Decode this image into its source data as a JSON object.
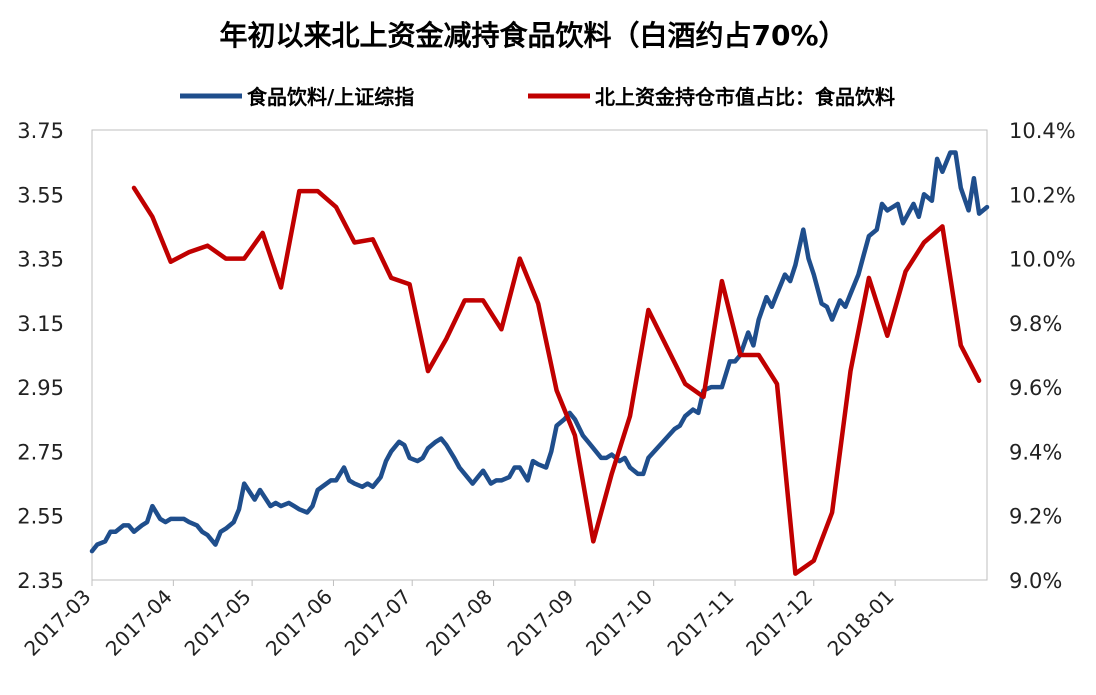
{
  "chart_data": {
    "type": "line",
    "title": "年初以来北上资金减持食品饮料（白酒约占70%）",
    "x_ticks": [
      "2017-03",
      "2017-04",
      "2017-05",
      "2017-06",
      "2017-07",
      "2017-08",
      "2017-09",
      "2017-10",
      "2017-11",
      "2017-12",
      "2018-01"
    ],
    "y_left": {
      "ticks": [
        "2.35",
        "2.55",
        "2.75",
        "2.95",
        "3.15",
        "3.35",
        "3.55",
        "3.75"
      ],
      "ylim": [
        2.35,
        3.75
      ]
    },
    "y_right": {
      "ticks": [
        "9.0%",
        "9.2%",
        "9.4%",
        "9.6%",
        "9.8%",
        "10.0%",
        "10.2%",
        "10.4%"
      ],
      "ylim": [
        9.0,
        10.4
      ],
      "unit": "%"
    },
    "legend_position": "top",
    "grid": false,
    "series": [
      {
        "name": "食品饮料/上证综指",
        "axis": "left",
        "color": "#1F4E8C",
        "points": [
          [
            "2017-03-01",
            2.44
          ],
          [
            "2017-03-03",
            2.46
          ],
          [
            "2017-03-06",
            2.47
          ],
          [
            "2017-03-08",
            2.5
          ],
          [
            "2017-03-10",
            2.5
          ],
          [
            "2017-03-13",
            2.52
          ],
          [
            "2017-03-15",
            2.52
          ],
          [
            "2017-03-17",
            2.5
          ],
          [
            "2017-03-20",
            2.52
          ],
          [
            "2017-03-22",
            2.53
          ],
          [
            "2017-03-24",
            2.58
          ],
          [
            "2017-03-27",
            2.54
          ],
          [
            "2017-03-29",
            2.53
          ],
          [
            "2017-03-31",
            2.54
          ],
          [
            "2017-04-05",
            2.54
          ],
          [
            "2017-04-07",
            2.53
          ],
          [
            "2017-04-10",
            2.52
          ],
          [
            "2017-04-12",
            2.5
          ],
          [
            "2017-04-14",
            2.49
          ],
          [
            "2017-04-17",
            2.46
          ],
          [
            "2017-04-19",
            2.5
          ],
          [
            "2017-04-21",
            2.51
          ],
          [
            "2017-04-24",
            2.53
          ],
          [
            "2017-04-26",
            2.57
          ],
          [
            "2017-04-28",
            2.65
          ],
          [
            "2017-05-02",
            2.6
          ],
          [
            "2017-05-04",
            2.63
          ],
          [
            "2017-05-08",
            2.58
          ],
          [
            "2017-05-10",
            2.59
          ],
          [
            "2017-05-12",
            2.58
          ],
          [
            "2017-05-15",
            2.59
          ],
          [
            "2017-05-17",
            2.58
          ],
          [
            "2017-05-19",
            2.57
          ],
          [
            "2017-05-22",
            2.56
          ],
          [
            "2017-05-24",
            2.58
          ],
          [
            "2017-05-26",
            2.63
          ],
          [
            "2017-05-31",
            2.66
          ],
          [
            "2017-06-02",
            2.66
          ],
          [
            "2017-06-05",
            2.7
          ],
          [
            "2017-06-07",
            2.66
          ],
          [
            "2017-06-09",
            2.65
          ],
          [
            "2017-06-12",
            2.64
          ],
          [
            "2017-06-14",
            2.65
          ],
          [
            "2017-06-16",
            2.64
          ],
          [
            "2017-06-19",
            2.67
          ],
          [
            "2017-06-21",
            2.72
          ],
          [
            "2017-06-23",
            2.75
          ],
          [
            "2017-06-26",
            2.78
          ],
          [
            "2017-06-28",
            2.77
          ],
          [
            "2017-06-30",
            2.73
          ],
          [
            "2017-07-03",
            2.72
          ],
          [
            "2017-07-05",
            2.73
          ],
          [
            "2017-07-07",
            2.76
          ],
          [
            "2017-07-10",
            2.78
          ],
          [
            "2017-07-12",
            2.79
          ],
          [
            "2017-07-14",
            2.77
          ],
          [
            "2017-07-17",
            2.73
          ],
          [
            "2017-07-19",
            2.7
          ],
          [
            "2017-07-21",
            2.68
          ],
          [
            "2017-07-24",
            2.65
          ],
          [
            "2017-07-26",
            2.67
          ],
          [
            "2017-07-28",
            2.69
          ],
          [
            "2017-07-31",
            2.65
          ],
          [
            "2017-08-02",
            2.66
          ],
          [
            "2017-08-04",
            2.66
          ],
          [
            "2017-08-07",
            2.67
          ],
          [
            "2017-08-09",
            2.7
          ],
          [
            "2017-08-11",
            2.7
          ],
          [
            "2017-08-14",
            2.66
          ],
          [
            "2017-08-16",
            2.72
          ],
          [
            "2017-08-18",
            2.71
          ],
          [
            "2017-08-21",
            2.7
          ],
          [
            "2017-08-23",
            2.75
          ],
          [
            "2017-08-25",
            2.83
          ],
          [
            "2017-08-28",
            2.85
          ],
          [
            "2017-08-30",
            2.87
          ],
          [
            "2017-09-01",
            2.85
          ],
          [
            "2017-09-04",
            2.8
          ],
          [
            "2017-09-06",
            2.78
          ],
          [
            "2017-09-08",
            2.76
          ],
          [
            "2017-09-11",
            2.73
          ],
          [
            "2017-09-13",
            2.73
          ],
          [
            "2017-09-15",
            2.74
          ],
          [
            "2017-09-18",
            2.72
          ],
          [
            "2017-09-20",
            2.73
          ],
          [
            "2017-09-22",
            2.7
          ],
          [
            "2017-09-25",
            2.68
          ],
          [
            "2017-09-27",
            2.68
          ],
          [
            "2017-09-29",
            2.73
          ],
          [
            "2017-10-09",
            2.82
          ],
          [
            "2017-10-11",
            2.83
          ],
          [
            "2017-10-13",
            2.86
          ],
          [
            "2017-10-16",
            2.88
          ],
          [
            "2017-10-18",
            2.87
          ],
          [
            "2017-10-20",
            2.94
          ],
          [
            "2017-10-23",
            2.95
          ],
          [
            "2017-10-25",
            2.95
          ],
          [
            "2017-10-27",
            2.95
          ],
          [
            "2017-10-30",
            3.03
          ],
          [
            "2017-11-01",
            3.03
          ],
          [
            "2017-11-03",
            3.05
          ],
          [
            "2017-11-06",
            3.12
          ],
          [
            "2017-11-08",
            3.08
          ],
          [
            "2017-11-10",
            3.16
          ],
          [
            "2017-11-13",
            3.23
          ],
          [
            "2017-11-15",
            3.2
          ],
          [
            "2017-11-17",
            3.24
          ],
          [
            "2017-11-20",
            3.3
          ],
          [
            "2017-11-22",
            3.28
          ],
          [
            "2017-11-24",
            3.33
          ],
          [
            "2017-11-27",
            3.44
          ],
          [
            "2017-11-29",
            3.35
          ],
          [
            "2017-12-01",
            3.3
          ],
          [
            "2017-12-04",
            3.21
          ],
          [
            "2017-12-06",
            3.2
          ],
          [
            "2017-12-08",
            3.16
          ],
          [
            "2017-12-11",
            3.22
          ],
          [
            "2017-12-13",
            3.2
          ],
          [
            "2017-12-15",
            3.24
          ],
          [
            "2017-12-18",
            3.3
          ],
          [
            "2017-12-20",
            3.36
          ],
          [
            "2017-12-22",
            3.42
          ],
          [
            "2017-12-25",
            3.44
          ],
          [
            "2017-12-27",
            3.52
          ],
          [
            "2017-12-29",
            3.5
          ],
          [
            "2018-01-02",
            3.52
          ],
          [
            "2018-01-04",
            3.46
          ],
          [
            "2018-01-08",
            3.52
          ],
          [
            "2018-01-10",
            3.48
          ],
          [
            "2018-01-12",
            3.55
          ],
          [
            "2018-01-15",
            3.53
          ],
          [
            "2018-01-17",
            3.66
          ],
          [
            "2018-01-19",
            3.62
          ],
          [
            "2018-01-22",
            3.68
          ],
          [
            "2018-01-24",
            3.68
          ],
          [
            "2018-01-26",
            3.57
          ],
          [
            "2018-01-29",
            3.5
          ],
          [
            "2018-01-31",
            3.6
          ],
          [
            "2018-02-02",
            3.49
          ],
          [
            "2018-02-05",
            3.51
          ]
        ]
      },
      {
        "name": "北上资金持仓市值占比：食品饮料",
        "axis": "right",
        "color": "#C00000",
        "points": [
          [
            "2017-03-17",
            10.22
          ],
          [
            "2017-03-24",
            10.13
          ],
          [
            "2017-03-31",
            9.99
          ],
          [
            "2017-04-07",
            10.02
          ],
          [
            "2017-04-14",
            10.04
          ],
          [
            "2017-04-21",
            10.0
          ],
          [
            "2017-04-28",
            10.0
          ],
          [
            "2017-05-05",
            10.08
          ],
          [
            "2017-05-12",
            9.91
          ],
          [
            "2017-05-19",
            10.21
          ],
          [
            "2017-05-26",
            10.21
          ],
          [
            "2017-06-02",
            10.16
          ],
          [
            "2017-06-09",
            10.05
          ],
          [
            "2017-06-16",
            10.06
          ],
          [
            "2017-06-23",
            9.94
          ],
          [
            "2017-06-30",
            9.92
          ],
          [
            "2017-07-07",
            9.65
          ],
          [
            "2017-07-14",
            9.75
          ],
          [
            "2017-07-21",
            9.87
          ],
          [
            "2017-07-28",
            9.87
          ],
          [
            "2017-08-04",
            9.78
          ],
          [
            "2017-08-11",
            10.0
          ],
          [
            "2017-08-18",
            9.86
          ],
          [
            "2017-08-25",
            9.59
          ],
          [
            "2017-09-01",
            9.45
          ],
          [
            "2017-09-08",
            9.12
          ],
          [
            "2017-09-15",
            9.33
          ],
          [
            "2017-09-22",
            9.51
          ],
          [
            "2017-09-29",
            9.84
          ],
          [
            "2017-10-13",
            9.61
          ],
          [
            "2017-10-20",
            9.57
          ],
          [
            "2017-10-27",
            9.93
          ],
          [
            "2017-11-03",
            9.7
          ],
          [
            "2017-11-10",
            9.7
          ],
          [
            "2017-11-17",
            9.61
          ],
          [
            "2017-11-24",
            9.02
          ],
          [
            "2017-12-01",
            9.06
          ],
          [
            "2017-12-08",
            9.21
          ],
          [
            "2017-12-15",
            9.65
          ],
          [
            "2017-12-22",
            9.94
          ],
          [
            "2017-12-29",
            9.76
          ],
          [
            "2018-01-05",
            9.96
          ],
          [
            "2018-01-12",
            10.05
          ],
          [
            "2018-01-19",
            10.1
          ],
          [
            "2018-01-26",
            9.73
          ],
          [
            "2018-02-02",
            9.62
          ]
        ]
      }
    ]
  }
}
